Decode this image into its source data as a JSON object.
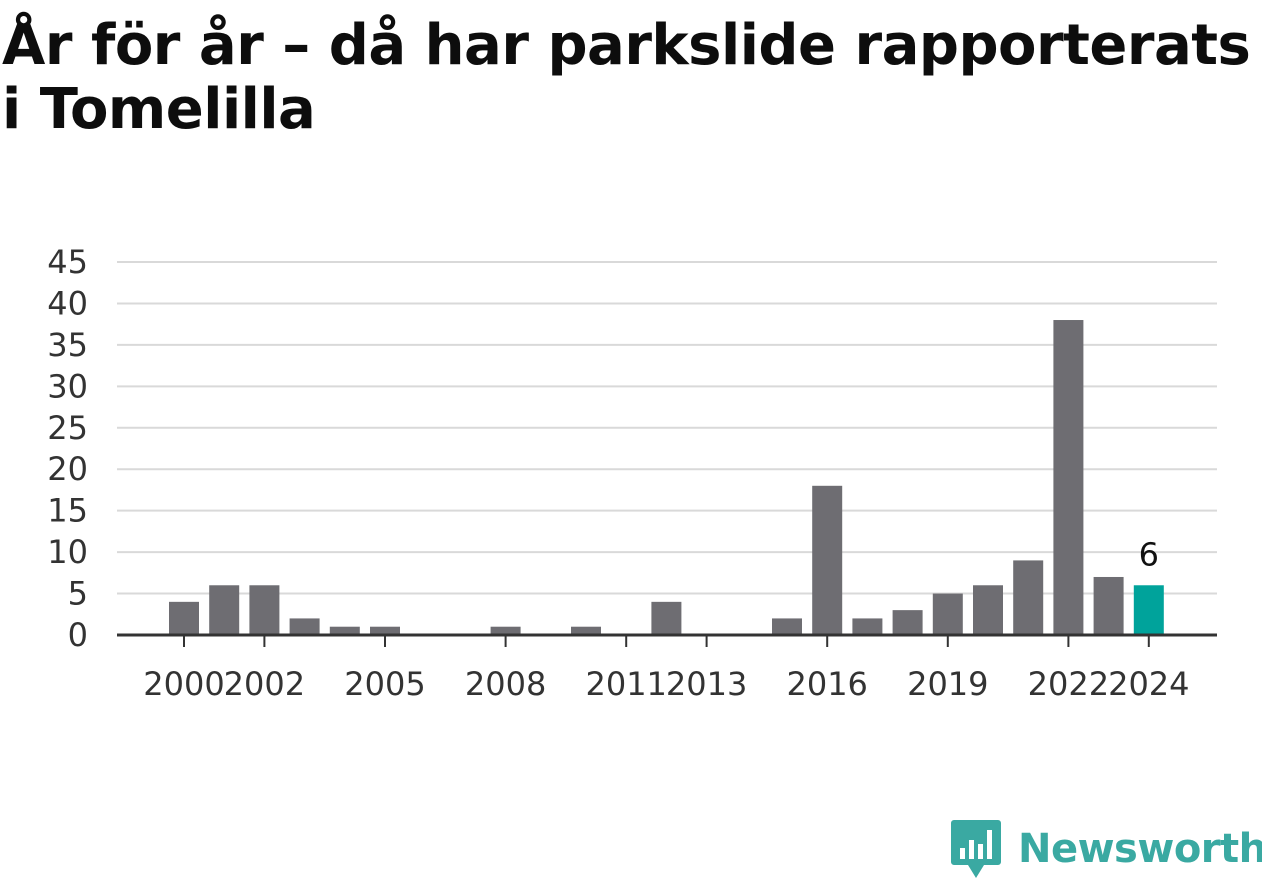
{
  "title": "År för år – då har parkslide rapporterats i Tomelilla",
  "brand": {
    "name": "Newsworthy",
    "icon": "newsworthy-logo-icon"
  },
  "colors": {
    "bar": "#6e6d72",
    "highlight": "#00a39b",
    "grid": "#d9d9d9",
    "axis": "#333333",
    "brand": "#3aa9a2"
  },
  "chart_data": {
    "type": "bar",
    "title": "År för år – då har parkslide rapporterats i Tomelilla",
    "xlabel": "",
    "ylabel": "",
    "categories": [
      "2000",
      "2001",
      "2002",
      "2003",
      "2004",
      "2005",
      "2006",
      "2007",
      "2008",
      "2009",
      "2010",
      "2011",
      "2012",
      "2013",
      "2014",
      "2015",
      "2016",
      "2017",
      "2018",
      "2019",
      "2020",
      "2021",
      "2022",
      "2023",
      "2024"
    ],
    "values": [
      4,
      6,
      6,
      2,
      1,
      1,
      0,
      0,
      1,
      0,
      1,
      0,
      4,
      0,
      0,
      2,
      18,
      2,
      3,
      5,
      6,
      9,
      38,
      7,
      6
    ],
    "highlight": "2024",
    "highlight_label": "6",
    "x_tick_labels": [
      "2000",
      "2002",
      "2005",
      "2008",
      "2011",
      "2013",
      "2016",
      "2019",
      "2022",
      "2024"
    ],
    "y_ticks": [
      0,
      5,
      10,
      15,
      20,
      25,
      30,
      35,
      40,
      45
    ],
    "ylim": [
      0,
      45
    ],
    "grid": true,
    "legend": "none"
  }
}
